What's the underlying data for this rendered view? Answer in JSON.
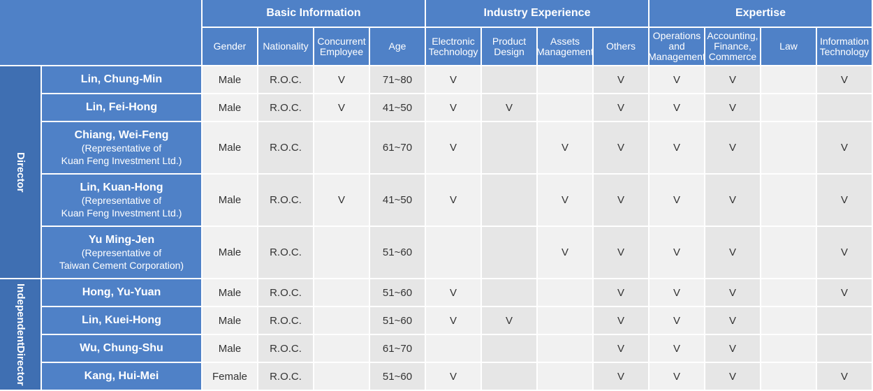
{
  "groups": [
    "Basic Information",
    "Industry Experience",
    "Expertise"
  ],
  "columns": [
    [
      "Gender"
    ],
    [
      "Nationality"
    ],
    [
      "Concurrent",
      "Employee"
    ],
    [
      "Age"
    ],
    [
      "Electronic",
      "Technology"
    ],
    [
      "Product",
      "Design"
    ],
    [
      "Assets",
      "Management"
    ],
    [
      "Others"
    ],
    [
      "Operations",
      "and",
      "Management"
    ],
    [
      "Accounting,",
      "Finance,",
      "Commerce"
    ],
    [
      "Law"
    ],
    [
      "Information",
      "Technology"
    ]
  ],
  "categories": [
    {
      "lines": [
        "Director"
      ]
    },
    {
      "lines": [
        "Independent",
        "Director"
      ]
    }
  ],
  "rows": [
    {
      "name": "Lin, Chung-Min",
      "rep": [],
      "cells": [
        "Male",
        "R.O.C.",
        "V",
        "71~80",
        "V",
        "",
        "",
        "V",
        "V",
        "V",
        "",
        "V"
      ]
    },
    {
      "name": "Lin, Fei-Hong",
      "rep": [],
      "cells": [
        "Male",
        "R.O.C.",
        "V",
        "41~50",
        "V",
        "V",
        "",
        "V",
        "V",
        "V",
        "",
        ""
      ]
    },
    {
      "name": "Chiang, Wei-Feng",
      "rep": [
        "(Representative of",
        "Kuan Feng Investment Ltd.)"
      ],
      "cells": [
        "Male",
        "R.O.C.",
        "",
        "61~70",
        "V",
        "",
        "V",
        "V",
        "V",
        "V",
        "",
        "V"
      ]
    },
    {
      "name": "Lin, Kuan-Hong",
      "rep": [
        "(Representative of",
        "Kuan Feng Investment Ltd.)"
      ],
      "cells": [
        "Male",
        "R.O.C.",
        "V",
        "41~50",
        "V",
        "",
        "V",
        "V",
        "V",
        "V",
        "",
        "V"
      ]
    },
    {
      "name": "Yu Ming-Jen",
      "rep": [
        "(Representative of",
        "Taiwan Cement Corporation)"
      ],
      "cells": [
        "Male",
        "R.O.C.",
        "",
        "51~60",
        "",
        "",
        "V",
        "V",
        "V",
        "V",
        "",
        "V"
      ]
    },
    {
      "name": "Hong, Yu-Yuan",
      "rep": [],
      "cells": [
        "Male",
        "R.O.C.",
        "",
        "51~60",
        "V",
        "",
        "",
        "V",
        "V",
        "V",
        "",
        "V"
      ]
    },
    {
      "name": "Lin, Kuei-Hong",
      "rep": [],
      "cells": [
        "Male",
        "R.O.C.",
        "",
        "51~60",
        "V",
        "V",
        "",
        "V",
        "V",
        "V",
        "",
        ""
      ]
    },
    {
      "name": "Wu, Chung-Shu",
      "rep": [],
      "cells": [
        "Male",
        "R.O.C.",
        "",
        "61~70",
        "",
        "",
        "",
        "V",
        "V",
        "V",
        "",
        ""
      ]
    },
    {
      "name": "Kang, Hui-Mei",
      "rep": [],
      "cells": [
        "Female",
        "R.O.C.",
        "",
        "51~60",
        "V",
        "",
        "",
        "V",
        "V",
        "V",
        "",
        "V"
      ]
    }
  ]
}
